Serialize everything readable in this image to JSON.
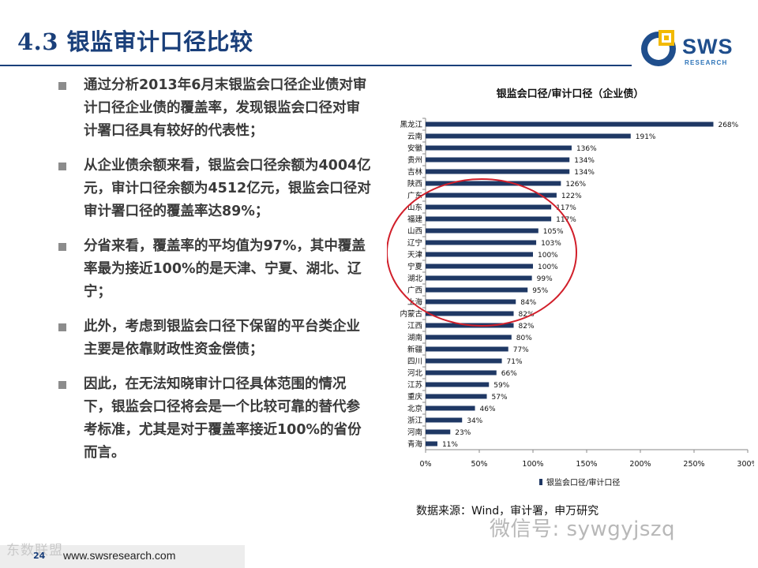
{
  "slide": {
    "title": "4.3 银监审计口径比较"
  },
  "logo": {
    "brand": "SWS",
    "sub": "RESEARCH"
  },
  "bullets": [
    "通过分析2013年6月末银监会口径企业债对审计口径企业债的覆盖率，发现银监会口径对审计署口径具有较好的代表性；",
    "从企业债余额来看，银监会口径余额为4004亿元，审计口径余额为4512亿元，银监会口径对审计署口径的覆盖率达89%；",
    "分省来看，覆盖率的平均值为97%，其中覆盖率最为接近100%的是天津、宁夏、湖北、辽宁；",
    "此外，考虑到银监会口径下保留的平台类企业主要是依靠财政性资金偿债；",
    "因此，在无法知晓审计口径具体范围的情况下，银监会口径将会是一个比较可靠的替代参考标准，尤其是对于覆盖率接近100%的省份而言。"
  ],
  "chart_data": {
    "type": "bar",
    "orientation": "horizontal",
    "title": "银监会口径/审计口径（企业债）",
    "categories": [
      "黑龙江",
      "云南",
      "安徽",
      "贵州",
      "吉林",
      "陕西",
      "广东",
      "山东",
      "福建",
      "山西",
      "辽宁",
      "天津",
      "宁夏",
      "湖北",
      "广西",
      "上海",
      "内蒙古",
      "江西",
      "湖南",
      "新疆",
      "四川",
      "河北",
      "江苏",
      "重庆",
      "北京",
      "浙江",
      "河南",
      "青海"
    ],
    "series": [
      {
        "name": "银监会口径/审计口径",
        "values": [
          268,
          191,
          136,
          134,
          134,
          126,
          122,
          117,
          117,
          105,
          103,
          100,
          100,
          99,
          95,
          84,
          82,
          82,
          80,
          77,
          71,
          66,
          59,
          57,
          46,
          34,
          23,
          11
        ]
      }
    ],
    "value_labels": [
      "268%",
      "191%",
      "136%",
      "134%",
      "134%",
      "126%",
      "122%",
      "117%",
      "117%",
      "105%",
      "103%",
      "100%",
      "100%",
      "99%",
      "95%",
      "84%",
      "82%",
      "82%",
      "80%",
      "77%",
      "71%",
      "66%",
      "59%",
      "57%",
      "46%",
      "34%",
      "23%",
      "11%"
    ],
    "xticks": [
      "0%",
      "50%",
      "100%",
      "150%",
      "200%",
      "250%",
      "300%"
    ],
    "xlim": [
      0,
      300
    ],
    "bar_color": "#1f3864",
    "highlight_color": "#d11f2a",
    "legend_position": "bottom"
  },
  "source": "数据来源：Wind，审计署，申万研究",
  "watermark": {
    "wechat": "微信号: sywgyjszq",
    "site": "东数联盟"
  },
  "footer": {
    "page": "24",
    "url": "www.swsresearch.com"
  }
}
